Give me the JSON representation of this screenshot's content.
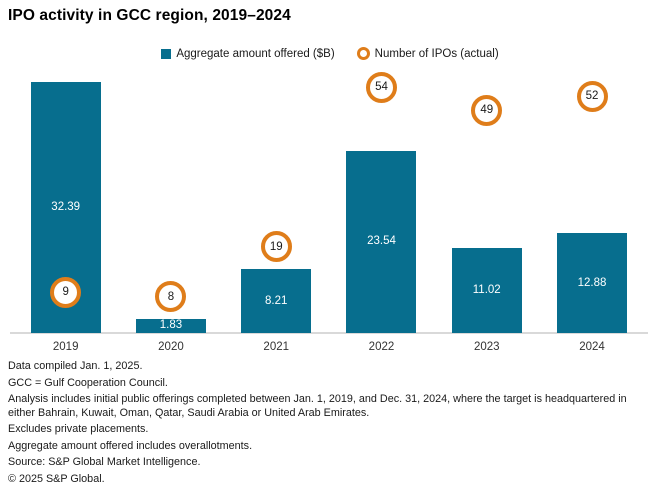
{
  "title": "IPO activity in GCC region, 2019–2024",
  "legend": {
    "amount_label": "Aggregate amount offered ($B)",
    "count_label": "Number of IPOs (actual)"
  },
  "colors": {
    "bar_teal": "#076E8E",
    "ipo_orange": "#DF7D1A",
    "axis_gray": "#D9D9D9",
    "bar_value_text": "#FFFFFF"
  },
  "chart_data": {
    "type": "bar",
    "title": "IPO activity in GCC region, 2019–2024",
    "categories": [
      "2019",
      "2020",
      "2021",
      "2022",
      "2023",
      "2024"
    ],
    "series": [
      {
        "name": "Aggregate amount offered ($B)",
        "type": "bar",
        "color": "#076E8E",
        "values": [
          32.39,
          1.83,
          8.21,
          23.54,
          11.02,
          12.88
        ]
      },
      {
        "name": "Number of IPOs (actual)",
        "type": "circled-point",
        "color": "#DF7D1A",
        "values": [
          9,
          8,
          19,
          54,
          49,
          52
        ]
      }
    ],
    "xlabel": "",
    "ylabel": "",
    "value_axis_visible": false,
    "grid": false,
    "legend_position": "top-center",
    "bar_labels": "inside-center-white",
    "count_marker_style": "white circle with orange ring, value inside"
  },
  "footnotes": [
    "Data compiled Jan. 1, 2025.",
    "GCC = Gulf Cooperation Council.",
    "Analysis includes initial public offerings completed between Jan. 1, 2019, and Dec. 31, 2024, where the target is headquartered in either Bahrain, Kuwait, Oman, Qatar, Saudi Arabia or United Arab Emirates.",
    "Excludes private placements.",
    "Aggregate amount offered includes overallotments.",
    "Source: S&P Global Market Intelligence.",
    "© 2025 S&P Global."
  ]
}
